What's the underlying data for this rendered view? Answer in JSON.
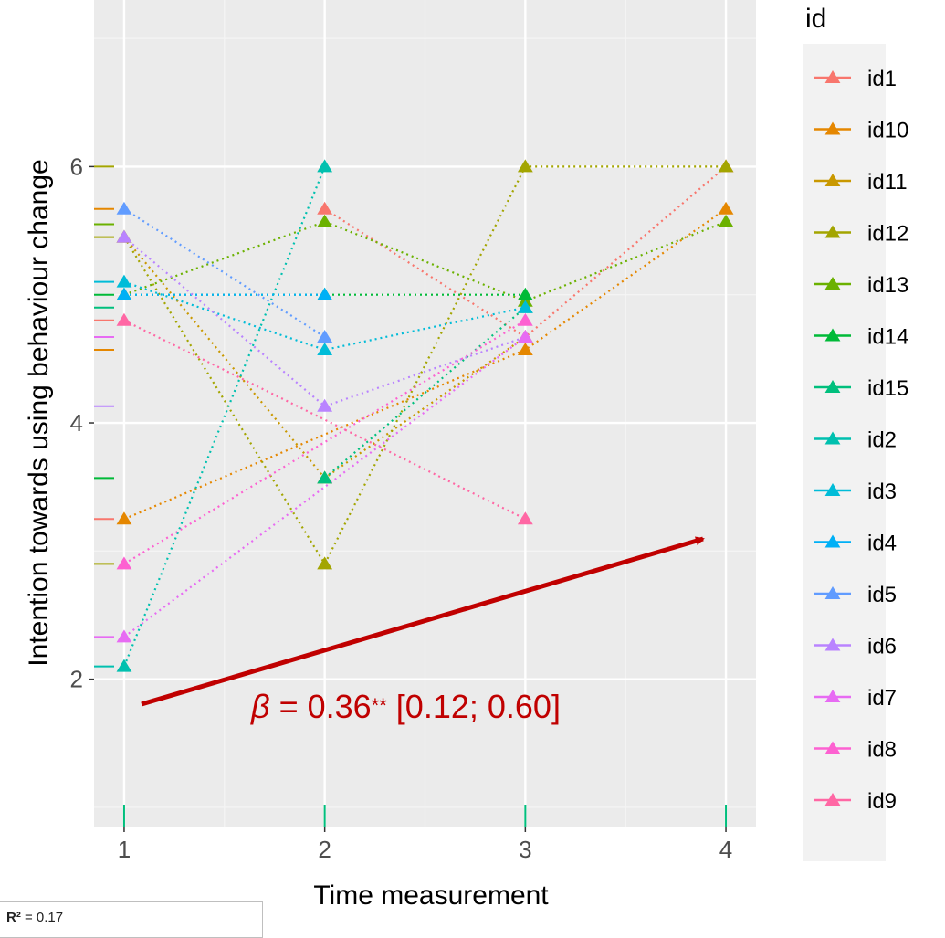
{
  "chart_data": {
    "type": "line",
    "xlabel": "Time measurement",
    "ylabel": "Intention towards using behaviour change",
    "x_ticks": [
      "1",
      "2",
      "3",
      "4"
    ],
    "y_ticks": [
      "2",
      "4",
      "6"
    ],
    "xlim": [
      0.85,
      4.15
    ],
    "ylim": [
      0.85,
      7.3
    ],
    "grid": true,
    "legend_title": "id",
    "legend_position": "right",
    "series": [
      {
        "name": "id1",
        "color": "#F8766D",
        "points": [
          [
            2,
            5.67
          ],
          [
            3,
            4.67
          ],
          [
            4,
            6.0
          ]
        ]
      },
      {
        "name": "id10",
        "color": "#E58700",
        "points": [
          [
            1,
            3.25
          ],
          [
            3,
            4.57
          ],
          [
            4,
            5.67
          ]
        ]
      },
      {
        "name": "id11",
        "color": "#C99800",
        "points": [
          [
            1,
            5.45
          ],
          [
            2,
            3.57
          ],
          [
            3,
            4.67
          ]
        ]
      },
      {
        "name": "id12",
        "color": "#A3A500",
        "points": [
          [
            1,
            5.45
          ],
          [
            2,
            2.9
          ],
          [
            3,
            6.0
          ],
          [
            4,
            6.0
          ]
        ]
      },
      {
        "name": "id13",
        "color": "#6BB100",
        "points": [
          [
            1,
            5.0
          ],
          [
            2,
            5.57
          ],
          [
            3,
            4.95
          ],
          [
            4,
            5.57
          ]
        ]
      },
      {
        "name": "id14",
        "color": "#00BA38",
        "points": [
          [
            1,
            5.0
          ],
          [
            2,
            5.0
          ],
          [
            3,
            5.0
          ]
        ]
      },
      {
        "name": "id15",
        "color": "#00BF7D",
        "points": [
          [
            2,
            3.57
          ],
          [
            3,
            4.9
          ]
        ]
      },
      {
        "name": "id2",
        "color": "#00C0AF",
        "points": [
          [
            1,
            2.1
          ],
          [
            2,
            6.0
          ]
        ]
      },
      {
        "name": "id3",
        "color": "#00BCD8",
        "points": [
          [
            1,
            5.1
          ],
          [
            2,
            4.57
          ],
          [
            3,
            4.9
          ]
        ]
      },
      {
        "name": "id4",
        "color": "#00B0F6",
        "points": [
          [
            1,
            5.0
          ],
          [
            2,
            5.0
          ]
        ]
      },
      {
        "name": "id5",
        "color": "#619CFF",
        "points": [
          [
            1,
            5.67
          ],
          [
            2,
            4.67
          ]
        ]
      },
      {
        "name": "id6",
        "color": "#B983FF",
        "points": [
          [
            1,
            5.45
          ],
          [
            2,
            4.13
          ],
          [
            3,
            4.67
          ]
        ]
      },
      {
        "name": "id7",
        "color": "#E76BF3",
        "points": [
          [
            1,
            2.33
          ],
          [
            3,
            4.67
          ]
        ]
      },
      {
        "name": "id8",
        "color": "#FD61D1",
        "points": [
          [
            1,
            2.9
          ],
          [
            3,
            4.8
          ]
        ]
      },
      {
        "name": "id9",
        "color": "#FF67A4",
        "points": [
          [
            1,
            4.8
          ],
          [
            3,
            3.25
          ]
        ]
      }
    ],
    "rug_y": [
      {
        "y": 6.0,
        "color": "#A3A500"
      },
      {
        "y": 5.67,
        "color": "#E58700"
      },
      {
        "y": 5.55,
        "color": "#6BB100"
      },
      {
        "y": 5.45,
        "color": "#A3A500"
      },
      {
        "y": 5.1,
        "color": "#00BCD8"
      },
      {
        "y": 5.0,
        "color": "#00BA38"
      },
      {
        "y": 4.9,
        "color": "#00BF7D"
      },
      {
        "y": 4.8,
        "color": "#F8766D"
      },
      {
        "y": 4.67,
        "color": "#E76BF3"
      },
      {
        "y": 4.57,
        "color": "#E58700"
      },
      {
        "y": 4.13,
        "color": "#B983FF"
      },
      {
        "y": 3.57,
        "color": "#00BA38"
      },
      {
        "y": 3.25,
        "color": "#F8766D"
      },
      {
        "y": 2.9,
        "color": "#A3A500"
      },
      {
        "y": 2.33,
        "color": "#E76BF3"
      },
      {
        "y": 2.1,
        "color": "#00C0AF"
      }
    ],
    "rug_x": [
      1,
      2,
      3,
      4
    ],
    "rug_x_color": "#00BF7D",
    "annotation": {
      "beta_symbol": "β",
      "equals": " = 0.36",
      "stars": "**",
      "ci": " [0.12; 0.60]",
      "color": "#C00000"
    },
    "r2_label": "R²",
    "r2_value": "= 0.17"
  }
}
